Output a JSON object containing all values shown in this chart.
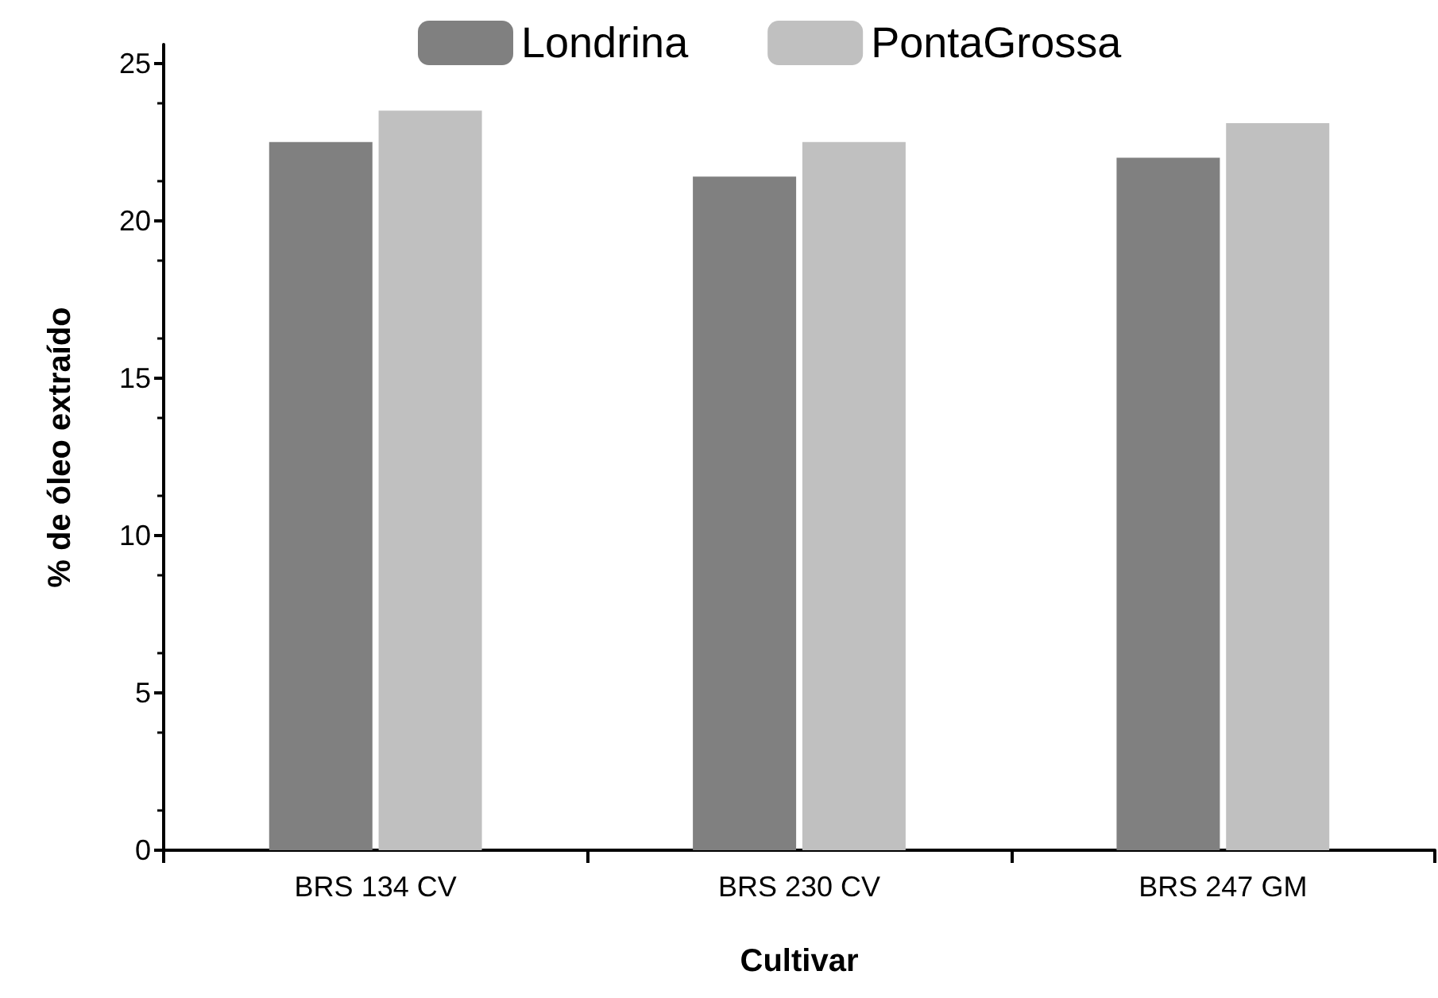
{
  "chart_data": {
    "type": "bar",
    "xlabel": "Cultivar",
    "ylabel": "% de óleo extraído",
    "categories": [
      "BRS 134 CV",
      "BRS 230 CV",
      "BRS 247 GM"
    ],
    "series": [
      {
        "name": "Londrina",
        "color": "#808080",
        "values": [
          22.5,
          21.4,
          22.0
        ]
      },
      {
        "name": "PontaGrossa",
        "color": "#c0c0c0",
        "values": [
          23.5,
          22.5,
          23.1
        ]
      }
    ],
    "ylim": [
      0,
      25.6
    ],
    "yticks": [
      0,
      5,
      10,
      15,
      20,
      25
    ],
    "grid": false,
    "legend": "top"
  }
}
